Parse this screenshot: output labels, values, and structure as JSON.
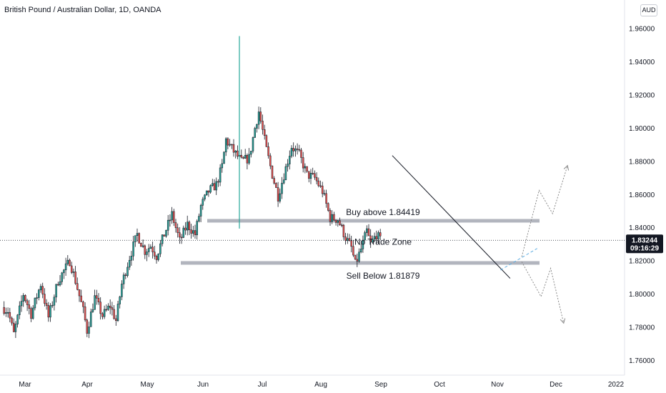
{
  "header": {
    "title": "British Pound / Australian Dollar, 1D, OANDA"
  },
  "currency_button": {
    "label": "AUD"
  },
  "price_badge": {
    "price": "1.83244",
    "countdown": "09:16:29"
  },
  "colors": {
    "up": "#26a69a",
    "down": "#ef5350",
    "wick": "#131722",
    "zone": "#b2b5be",
    "axis_text": "#131722"
  },
  "chart_data": {
    "type": "candlestick",
    "title": "British Pound / Australian Dollar, 1D, OANDA",
    "ylim": [
      1.75,
      1.97
    ],
    "y_ticks": [
      "1.96000",
      "1.94000",
      "1.92000",
      "1.90000",
      "1.88000",
      "1.86000",
      "1.84000",
      "1.82000",
      "1.80000",
      "1.78000",
      "1.76000"
    ],
    "x_ticks": [
      "Mar",
      "Apr",
      "May",
      "Jun",
      "Jul",
      "Aug",
      "Sep",
      "Oct",
      "Nov",
      "Dec",
      "2022"
    ],
    "last_price": 1.83244,
    "spike": {
      "date": "Jun 21",
      "high": 1.9555,
      "low": 1.8395
    },
    "anchors": [
      {
        "day": 0,
        "close": 1.792
      },
      {
        "day": 3,
        "close": 1.79
      },
      {
        "day": 6,
        "close": 1.776
      },
      {
        "day": 11,
        "close": 1.8
      },
      {
        "day": 15,
        "close": 1.788
      },
      {
        "day": 20,
        "close": 1.806
      },
      {
        "day": 24,
        "close": 1.786
      },
      {
        "day": 29,
        "close": 1.808
      },
      {
        "day": 35,
        "close": 1.82
      },
      {
        "day": 38,
        "close": 1.808
      },
      {
        "day": 42,
        "close": 1.79
      },
      {
        "day": 44,
        "close": 1.778
      },
      {
        "day": 48,
        "close": 1.798
      },
      {
        "day": 52,
        "close": 1.787
      },
      {
        "day": 56,
        "close": 1.793
      },
      {
        "day": 59,
        "close": 1.784
      },
      {
        "day": 62,
        "close": 1.806
      },
      {
        "day": 66,
        "close": 1.822
      },
      {
        "day": 70,
        "close": 1.836
      },
      {
        "day": 74,
        "close": 1.826
      },
      {
        "day": 77,
        "close": 1.829
      },
      {
        "day": 80,
        "close": 1.823
      },
      {
        "day": 84,
        "close": 1.836
      },
      {
        "day": 88,
        "close": 1.848
      },
      {
        "day": 92,
        "close": 1.832
      },
      {
        "day": 96,
        "close": 1.842
      },
      {
        "day": 100,
        "close": 1.836
      },
      {
        "day": 103,
        "close": 1.853
      },
      {
        "day": 107,
        "close": 1.862
      },
      {
        "day": 111,
        "close": 1.866
      },
      {
        "day": 114,
        "close": 1.877
      },
      {
        "day": 116,
        "close": 1.893
      },
      {
        "day": 120,
        "close": 1.886
      },
      {
        "day": 124,
        "close": 1.88
      },
      {
        "day": 128,
        "close": 1.882
      },
      {
        "day": 131,
        "close": 1.9
      },
      {
        "day": 133,
        "close": 1.91
      },
      {
        "day": 137,
        "close": 1.887
      },
      {
        "day": 140,
        "close": 1.872
      },
      {
        "day": 143,
        "close": 1.859
      },
      {
        "day": 147,
        "close": 1.876
      },
      {
        "day": 150,
        "close": 1.889
      },
      {
        "day": 154,
        "close": 1.884
      },
      {
        "day": 158,
        "close": 1.872
      },
      {
        "day": 162,
        "close": 1.87
      },
      {
        "day": 166,
        "close": 1.862
      },
      {
        "day": 170,
        "close": 1.846
      },
      {
        "day": 174,
        "close": 1.845
      },
      {
        "day": 178,
        "close": 1.834
      },
      {
        "day": 181,
        "close": 1.828
      },
      {
        "day": 183,
        "close": 1.818
      },
      {
        "day": 186,
        "close": 1.827
      },
      {
        "day": 189,
        "close": 1.838
      },
      {
        "day": 191,
        "close": 1.83
      },
      {
        "day": 194,
        "close": 1.836
      },
      {
        "day": 196,
        "close": 1.8324
      }
    ],
    "annotations": [
      {
        "type": "zone",
        "price": 1.84419,
        "label": "Buy above 1.84419"
      },
      {
        "type": "zone",
        "price": 1.81879,
        "label": "Sell Below 1.81879"
      },
      {
        "type": "text",
        "price": 1.8315,
        "label": "No Trade Zone"
      },
      {
        "type": "trendline",
        "from": {
          "date": "Sep 8",
          "price": 1.8835
        },
        "to": {
          "date": "Nov 8",
          "price": 1.8095
        }
      },
      {
        "type": "trendline",
        "style": "dashed",
        "from": {
          "date": "Nov 3",
          "price": 1.8145
        },
        "to": {
          "date": "Nov 22",
          "price": 1.8275
        }
      },
      {
        "type": "path",
        "style": "dotted",
        "direction": "up",
        "points": [
          [
            1.8225,
            "Nov 14"
          ],
          [
            1.8625,
            "Nov 23"
          ],
          [
            1.8485,
            "Nov 30"
          ],
          [
            1.8775,
            "Dec 7"
          ]
        ]
      },
      {
        "type": "path",
        "style": "dotted",
        "direction": "down",
        "points": [
          [
            1.8195,
            "Nov 14"
          ],
          [
            1.7985,
            "Nov 24"
          ],
          [
            1.8155,
            "Nov 29"
          ],
          [
            1.7825,
            "Dec 5"
          ]
        ]
      }
    ]
  }
}
